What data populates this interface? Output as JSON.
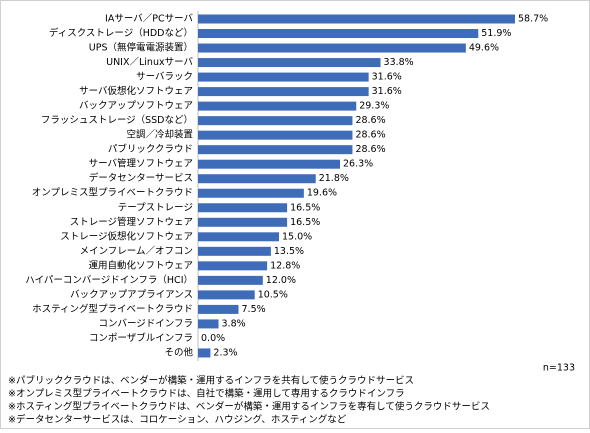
{
  "chart_data": {
    "type": "bar",
    "orientation": "horizontal",
    "color": "#3f6cb9",
    "categories": [
      "IAサーバ／PCサーバ",
      "ディスクストレージ（HDDなど）",
      "UPS（無停電電源装置）",
      "UNIX／Linuxサーバ",
      "サーバラック",
      "サーバ仮想化ソフトウェア",
      "バックアップソフトウェア",
      "フラッシュストレージ（SSDなど）",
      "空調／冷却装置",
      "パブリッククラウド",
      "サーバ管理ソフトウェア",
      "データセンターサービス",
      "オンプレミス型プライベートクラウド",
      "テープストレージ",
      "ストレージ管理ソフトウェア",
      "ストレージ仮想化ソフトウェア",
      "メインフレーム／オフコン",
      "運用自動化ソフトウェア",
      "ハイパーコンバージドインフラ（HCI）",
      "バックアップアプライアンス",
      "ホスティング型プライベートクラウド",
      "コンバージドインフラ",
      "コンポーザブルインフラ",
      "その他"
    ],
    "values": [
      58.7,
      51.9,
      49.6,
      33.8,
      31.6,
      31.6,
      29.3,
      28.6,
      28.6,
      28.6,
      26.3,
      21.8,
      19.6,
      16.5,
      16.5,
      15,
      13.5,
      12.8,
      12,
      10.5,
      7.5,
      3.8,
      0,
      2.3
    ],
    "value_labels": [
      "58.7%",
      "51.9%",
      "49.6%",
      "33.8%",
      "31.6%",
      "31.6%",
      "29.3%",
      "28.6%",
      "28.6%",
      "28.6%",
      "26.3%",
      "21.8%",
      "19.6%",
      "16.5%",
      "16.5%",
      "15.0%",
      "13.5%",
      "12.8%",
      "12.0%",
      "10.5%",
      "7.5%",
      "3.8%",
      "0.0%",
      "2.3%"
    ],
    "sample_size": "n=133",
    "notes": [
      "※パブリッククラウドは、ベンダーが構築・運用するインフラを共有して使うクラウドサービス",
      "※オンプレミス型プライベートクラウドは、自社で構築・運用して専用するクラウドインフラ",
      "※ホスティング型プライベートクラウドは、ベンダーが構築・運用するインフラを専有して使うクラウドサービス",
      "※データセンターサービスは、コロケーション、ハウジング、ホスティングなど"
    ]
  }
}
